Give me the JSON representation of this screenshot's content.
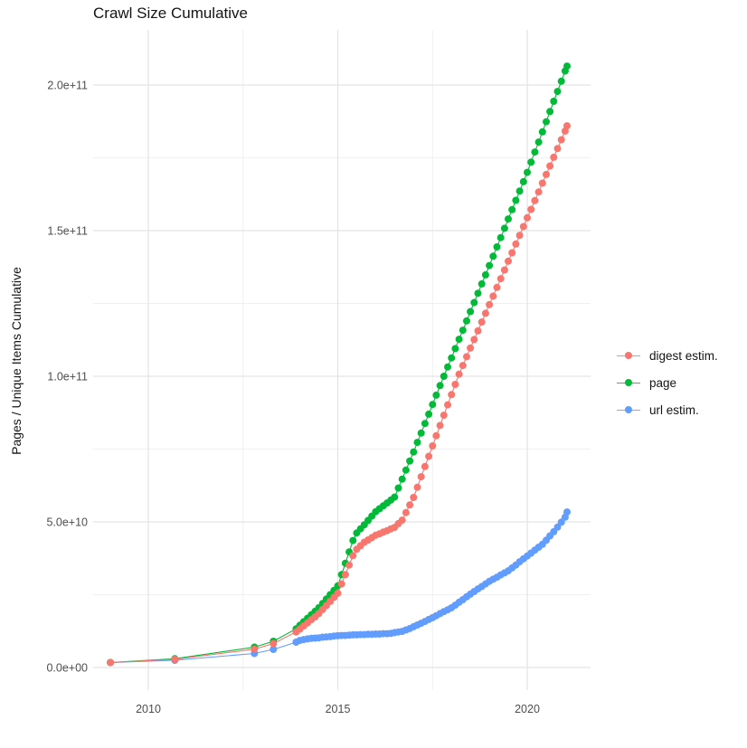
{
  "title": "Crawl Size Cumulative",
  "axes": {
    "y_label": "Pages / Unique Items Cumulative",
    "y_ticks": [
      {
        "label": "0.0e+00",
        "value_e9": 0
      },
      {
        "label": "5.0e+10",
        "value_e9": 50
      },
      {
        "label": "1.0e+11",
        "value_e9": 100
      },
      {
        "label": "1.5e+11",
        "value_e9": 150
      },
      {
        "label": "2.0e+11",
        "value_e9": 200
      }
    ],
    "x_ticks": [
      {
        "label": "2010",
        "value": 2010
      },
      {
        "label": "2015",
        "value": 2015
      },
      {
        "label": "2020",
        "value": 2020
      }
    ]
  },
  "legend": [
    {
      "label": "digest estim.",
      "color": "#F8766D"
    },
    {
      "label": "page",
      "color": "#00BA38"
    },
    {
      "label": "url estim.",
      "color": "#619CFF"
    }
  ],
  "chart_data": {
    "type": "line+scatter",
    "title": "Crawl Size Cumulative",
    "xlabel": "",
    "ylabel": "Pages / Unique Items Cumulative",
    "value_unit_multiplier": 1000000000.0,
    "xlim": [
      2008.55,
      2021.65
    ],
    "ylim_e9": [
      -8,
      218
    ],
    "x_major": [
      2010,
      2015,
      2020
    ],
    "x_minor": [
      2012.5,
      2017.5
    ],
    "y_major_e9": [
      0,
      50,
      100,
      150,
      200
    ],
    "y_minor_e9": [
      25,
      75,
      125,
      175
    ],
    "grid": true,
    "legend_position": "right",
    "series": [
      {
        "name": "digest estim.",
        "color": "#F8766D",
        "points": [
          [
            2009.0,
            1.7
          ],
          [
            2010.7,
            2.8
          ],
          [
            2012.8,
            6.3
          ],
          [
            2013.3,
            8.2
          ],
          [
            2013.9,
            12.2
          ],
          [
            2014.0,
            13.2
          ],
          [
            2014.1,
            14.3
          ],
          [
            2014.2,
            15.3
          ],
          [
            2014.3,
            16.4
          ],
          [
            2014.4,
            17.4
          ],
          [
            2014.5,
            18.5
          ],
          [
            2014.6,
            19.9
          ],
          [
            2014.7,
            21.3
          ],
          [
            2014.8,
            22.7
          ],
          [
            2014.9,
            24.1
          ],
          [
            2015.0,
            25.5
          ],
          [
            2015.1,
            28.7
          ],
          [
            2015.2,
            31.9
          ],
          [
            2015.3,
            35.2
          ],
          [
            2015.4,
            38.4
          ],
          [
            2015.5,
            40.6
          ],
          [
            2015.6,
            41.8
          ],
          [
            2015.7,
            43.0
          ],
          [
            2015.8,
            43.8
          ],
          [
            2015.9,
            44.6
          ],
          [
            2016.0,
            45.4
          ],
          [
            2016.1,
            45.9
          ],
          [
            2016.2,
            46.5
          ],
          [
            2016.3,
            47.0
          ],
          [
            2016.4,
            47.6
          ],
          [
            2016.5,
            48.1
          ],
          [
            2016.6,
            49.4
          ],
          [
            2016.7,
            50.6
          ],
          [
            2016.8,
            53.2
          ],
          [
            2016.9,
            55.8
          ],
          [
            2017.0,
            58.4
          ],
          [
            2017.1,
            61.9
          ],
          [
            2017.2,
            65.5
          ],
          [
            2017.3,
            69.0
          ],
          [
            2017.4,
            72.5
          ],
          [
            2017.5,
            76.1
          ],
          [
            2017.6,
            79.6
          ],
          [
            2017.7,
            83.1
          ],
          [
            2017.8,
            86.6
          ],
          [
            2017.9,
            90.2
          ],
          [
            2018.0,
            93.7
          ],
          [
            2018.1,
            97.2
          ],
          [
            2018.2,
            100.7
          ],
          [
            2018.3,
            103.7
          ],
          [
            2018.4,
            106.7
          ],
          [
            2018.5,
            109.7
          ],
          [
            2018.6,
            112.6
          ],
          [
            2018.7,
            115.6
          ],
          [
            2018.8,
            118.6
          ],
          [
            2018.9,
            121.6
          ],
          [
            2019.0,
            124.6
          ],
          [
            2019.1,
            127.5
          ],
          [
            2019.2,
            130.5
          ],
          [
            2019.3,
            133.5
          ],
          [
            2019.4,
            136.5
          ],
          [
            2019.5,
            139.5
          ],
          [
            2019.6,
            142.4
          ],
          [
            2019.7,
            145.4
          ],
          [
            2019.8,
            148.4
          ],
          [
            2019.9,
            151.4
          ],
          [
            2020.0,
            154.4
          ],
          [
            2020.1,
            157.3
          ],
          [
            2020.2,
            160.3
          ],
          [
            2020.3,
            163.3
          ],
          [
            2020.4,
            166.3
          ],
          [
            2020.5,
            169.3
          ],
          [
            2020.6,
            172.2
          ],
          [
            2020.7,
            175.2
          ],
          [
            2020.8,
            178.2
          ],
          [
            2020.9,
            181.2
          ],
          [
            2021.0,
            184.2
          ],
          [
            2021.05,
            186.0
          ]
        ]
      },
      {
        "name": "page",
        "color": "#00BA38",
        "points": [
          [
            2009.0,
            1.7
          ],
          [
            2010.7,
            3.0
          ],
          [
            2012.8,
            7.0
          ],
          [
            2013.3,
            9.0
          ],
          [
            2013.9,
            13.3
          ],
          [
            2014.0,
            14.5
          ],
          [
            2014.1,
            15.7
          ],
          [
            2014.2,
            16.9
          ],
          [
            2014.3,
            18.1
          ],
          [
            2014.4,
            19.3
          ],
          [
            2014.5,
            20.5
          ],
          [
            2014.6,
            22.0
          ],
          [
            2014.7,
            23.5
          ],
          [
            2014.8,
            25.0
          ],
          [
            2014.9,
            26.5
          ],
          [
            2015.0,
            28.0
          ],
          [
            2015.1,
            31.9
          ],
          [
            2015.2,
            35.8
          ],
          [
            2015.3,
            39.7
          ],
          [
            2015.4,
            43.6
          ],
          [
            2015.5,
            46.2
          ],
          [
            2015.6,
            47.6
          ],
          [
            2015.7,
            49.0
          ],
          [
            2015.8,
            50.5
          ],
          [
            2015.9,
            52.0
          ],
          [
            2016.0,
            53.5
          ],
          [
            2016.1,
            54.5
          ],
          [
            2016.2,
            55.5
          ],
          [
            2016.3,
            56.5
          ],
          [
            2016.4,
            57.5
          ],
          [
            2016.5,
            58.5
          ],
          [
            2016.6,
            61.6
          ],
          [
            2016.7,
            64.7
          ],
          [
            2016.8,
            67.8
          ],
          [
            2016.9,
            70.9
          ],
          [
            2017.0,
            74.0
          ],
          [
            2017.1,
            77.3
          ],
          [
            2017.2,
            80.5
          ],
          [
            2017.3,
            83.8
          ],
          [
            2017.4,
            87.0
          ],
          [
            2017.5,
            90.3
          ],
          [
            2017.6,
            93.5
          ],
          [
            2017.7,
            96.8
          ],
          [
            2017.8,
            100.0
          ],
          [
            2017.9,
            103.2
          ],
          [
            2018.0,
            106.3
          ],
          [
            2018.1,
            109.5
          ],
          [
            2018.2,
            112.7
          ],
          [
            2018.3,
            115.8
          ],
          [
            2018.4,
            119.0
          ],
          [
            2018.5,
            122.2
          ],
          [
            2018.6,
            125.3
          ],
          [
            2018.7,
            128.5
          ],
          [
            2018.8,
            131.7
          ],
          [
            2018.9,
            134.8
          ],
          [
            2019.0,
            138.0
          ],
          [
            2019.1,
            141.2
          ],
          [
            2019.2,
            144.4
          ],
          [
            2019.3,
            147.6
          ],
          [
            2019.4,
            150.8
          ],
          [
            2019.5,
            154.0
          ],
          [
            2019.6,
            157.2
          ],
          [
            2019.7,
            160.4
          ],
          [
            2019.8,
            163.6
          ],
          [
            2019.9,
            166.8
          ],
          [
            2020.0,
            170.0
          ],
          [
            2020.1,
            173.5
          ],
          [
            2020.2,
            177.0
          ],
          [
            2020.3,
            180.4
          ],
          [
            2020.4,
            183.9
          ],
          [
            2020.5,
            187.4
          ],
          [
            2020.6,
            190.9
          ],
          [
            2020.7,
            194.4
          ],
          [
            2020.8,
            197.8
          ],
          [
            2020.9,
            201.3
          ],
          [
            2021.0,
            204.8
          ],
          [
            2021.05,
            206.5
          ]
        ]
      },
      {
        "name": "url estim.",
        "color": "#619CFF",
        "points": [
          [
            2009.0,
            1.7
          ],
          [
            2010.7,
            2.5
          ],
          [
            2012.8,
            4.8
          ],
          [
            2013.3,
            6.2
          ],
          [
            2013.9,
            8.7
          ],
          [
            2014.0,
            9.3
          ],
          [
            2014.1,
            9.6
          ],
          [
            2014.2,
            9.8
          ],
          [
            2014.3,
            10.0
          ],
          [
            2014.4,
            10.1
          ],
          [
            2014.5,
            10.2
          ],
          [
            2014.6,
            10.4
          ],
          [
            2014.7,
            10.5
          ],
          [
            2014.8,
            10.6
          ],
          [
            2014.9,
            10.8
          ],
          [
            2015.0,
            10.9
          ],
          [
            2015.1,
            11.0
          ],
          [
            2015.2,
            11.0
          ],
          [
            2015.3,
            11.1
          ],
          [
            2015.4,
            11.2
          ],
          [
            2015.5,
            11.2
          ],
          [
            2015.6,
            11.3
          ],
          [
            2015.7,
            11.3
          ],
          [
            2015.8,
            11.4
          ],
          [
            2015.9,
            11.4
          ],
          [
            2016.0,
            11.5
          ],
          [
            2016.1,
            11.5
          ],
          [
            2016.2,
            11.6
          ],
          [
            2016.3,
            11.6
          ],
          [
            2016.4,
            11.7
          ],
          [
            2016.5,
            12.0
          ],
          [
            2016.6,
            12.2
          ],
          [
            2016.7,
            12.4
          ],
          [
            2016.8,
            12.9
          ],
          [
            2016.9,
            13.4
          ],
          [
            2017.0,
            14.0
          ],
          [
            2017.1,
            14.6
          ],
          [
            2017.2,
            15.2
          ],
          [
            2017.3,
            15.8
          ],
          [
            2017.4,
            16.5
          ],
          [
            2017.5,
            17.1
          ],
          [
            2017.6,
            17.8
          ],
          [
            2017.7,
            18.5
          ],
          [
            2017.8,
            19.2
          ],
          [
            2017.9,
            19.8
          ],
          [
            2018.0,
            20.5
          ],
          [
            2018.1,
            21.4
          ],
          [
            2018.2,
            22.4
          ],
          [
            2018.3,
            23.3
          ],
          [
            2018.4,
            24.3
          ],
          [
            2018.5,
            25.2
          ],
          [
            2018.6,
            26.1
          ],
          [
            2018.7,
            27.0
          ],
          [
            2018.8,
            27.8
          ],
          [
            2018.9,
            28.7
          ],
          [
            2019.0,
            29.6
          ],
          [
            2019.1,
            30.3
          ],
          [
            2019.2,
            31.0
          ],
          [
            2019.3,
            31.8
          ],
          [
            2019.4,
            32.5
          ],
          [
            2019.5,
            33.2
          ],
          [
            2019.6,
            34.2
          ],
          [
            2019.7,
            35.2
          ],
          [
            2019.8,
            36.3
          ],
          [
            2019.9,
            37.3
          ],
          [
            2020.0,
            38.3
          ],
          [
            2020.1,
            39.3
          ],
          [
            2020.2,
            40.3
          ],
          [
            2020.3,
            41.3
          ],
          [
            2020.4,
            42.3
          ],
          [
            2020.5,
            43.7
          ],
          [
            2020.6,
            45.2
          ],
          [
            2020.7,
            46.6
          ],
          [
            2020.8,
            48.2
          ],
          [
            2020.9,
            49.9
          ],
          [
            2021.0,
            51.6
          ],
          [
            2021.05,
            53.4
          ]
        ]
      }
    ]
  }
}
